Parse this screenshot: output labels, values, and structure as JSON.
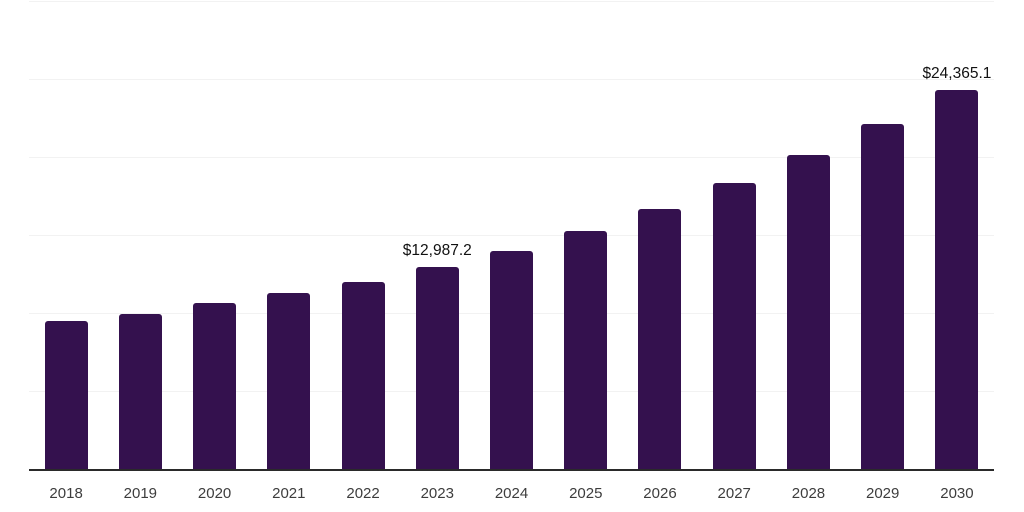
{
  "chart_data": {
    "type": "bar",
    "title": "",
    "xlabel": "",
    "ylabel": "",
    "categories": [
      "2018",
      "2019",
      "2020",
      "2021",
      "2022",
      "2023",
      "2024",
      "2025",
      "2026",
      "2027",
      "2028",
      "2029",
      "2030"
    ],
    "values": [
      9550,
      10020,
      10680,
      11320,
      12060,
      12987.2,
      14070,
      15310,
      16720,
      18370,
      20180,
      22180,
      24365.1
    ],
    "data_labels": {
      "2023": "$12,987.2",
      "2030": "$24,365.1"
    },
    "ylim": [
      0,
      30000
    ],
    "gridline_step": 5000,
    "grid": "horizontal-only",
    "y_tick_labels_visible": false,
    "legend": "none",
    "colors": {
      "bar": "#34114E",
      "axis_line": "#2a2a2a",
      "gridline": "#f2f2f2",
      "tick_label": "#3d3d3d",
      "data_label": "#111111",
      "background": "#ffffff"
    }
  }
}
